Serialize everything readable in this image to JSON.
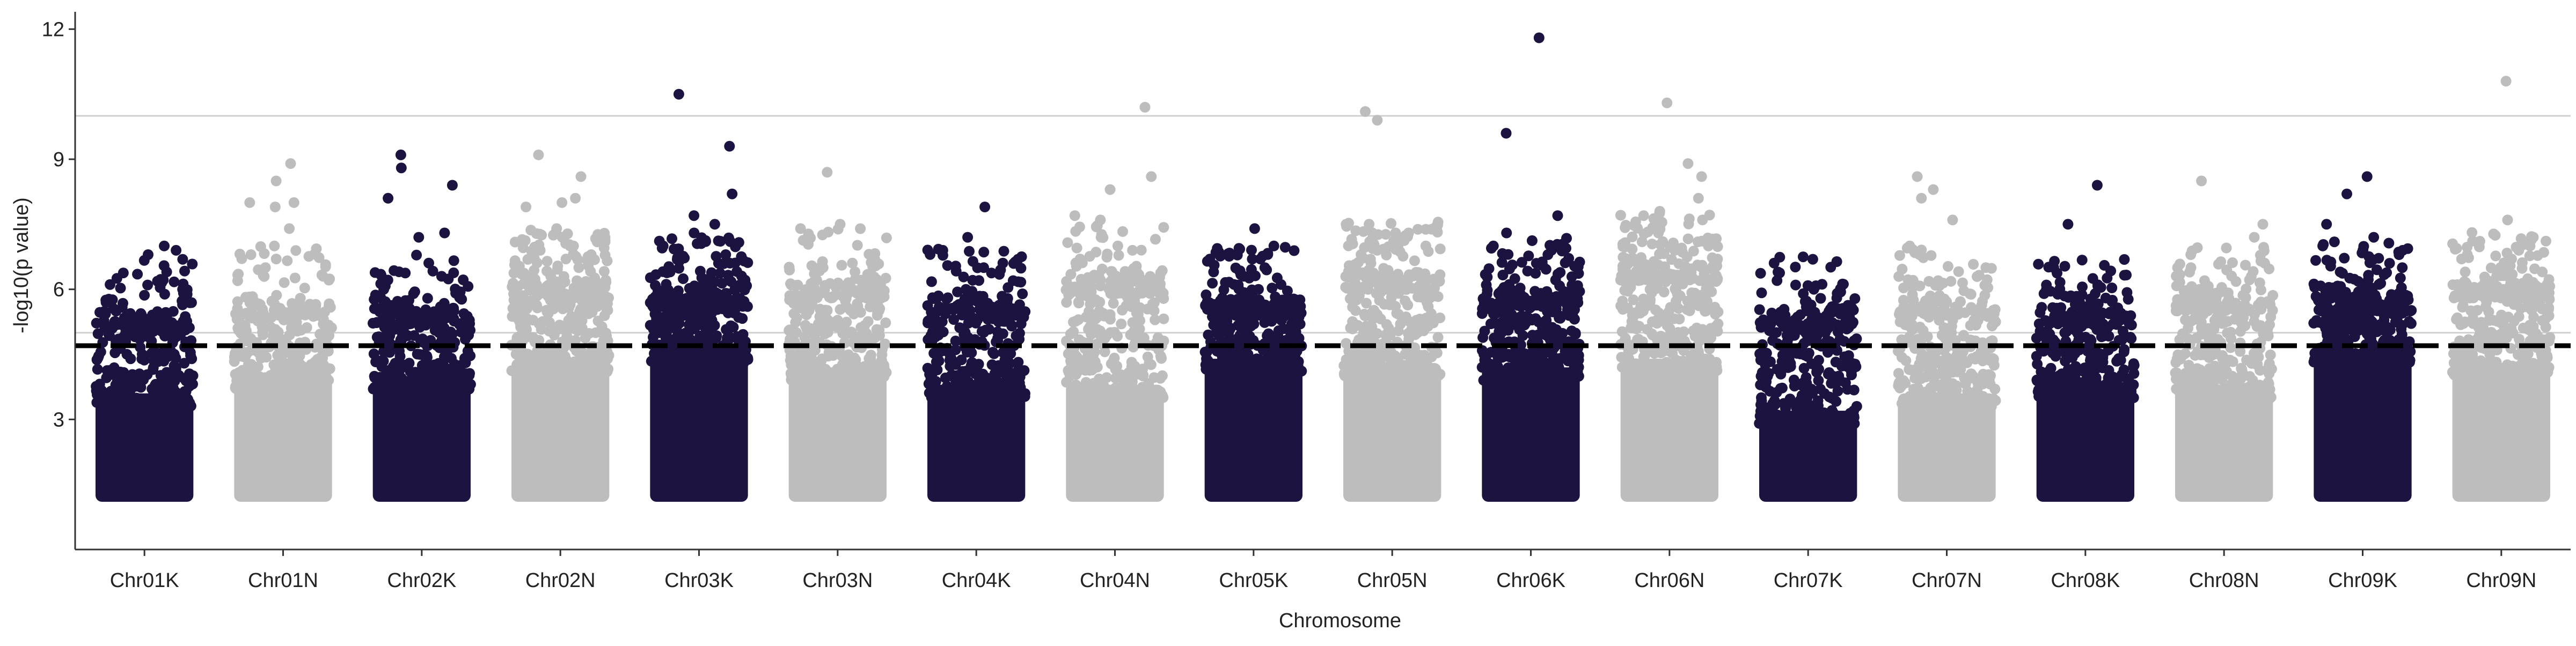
{
  "chart_data": {
    "type": "scatter",
    "subtype": "manhattan",
    "title": "",
    "xlabel": "Chromosome",
    "ylabel": "-log10(p value)",
    "ylim": [
      0,
      12.4
    ],
    "yticks": [
      3,
      6,
      9,
      12
    ],
    "grid": false,
    "legend": "none",
    "colors": {
      "dark": "#1c1340",
      "light": "#bdbdbd",
      "line": "#d0d0d0",
      "threshold": "#000000"
    },
    "significance_line": 4.7,
    "reference_lines": [
      5.0,
      10.0
    ],
    "chromosomes": [
      {
        "name": "Chr01K",
        "color": "dark",
        "floor": 1.1,
        "dense_top": 3.6,
        "spread_top": 5.5,
        "sparse": 70,
        "top_hits": [
          6.9,
          7.0,
          6.8,
          6.4,
          6.1,
          6.0
        ]
      },
      {
        "name": "Chr01N",
        "color": "light",
        "floor": 1.1,
        "dense_top": 4.0,
        "spread_top": 5.8,
        "sparse": 70,
        "top_hits": [
          8.9,
          8.5,
          8.0,
          8.0,
          7.9,
          7.4,
          7.0,
          6.8,
          6.7,
          6.5
        ]
      },
      {
        "name": "Chr02K",
        "color": "dark",
        "floor": 1.1,
        "dense_top": 4.0,
        "spread_top": 5.6,
        "sparse": 80,
        "top_hits": [
          9.1,
          8.8,
          8.4,
          8.1,
          7.3,
          7.2,
          6.3,
          6.0
        ]
      },
      {
        "name": "Chr02N",
        "color": "light",
        "floor": 1.1,
        "dense_top": 4.4,
        "spread_top": 6.2,
        "sparse": 110,
        "top_hits": [
          9.1,
          8.6,
          8.1,
          8.0,
          7.9,
          7.4,
          7.2,
          7.0,
          6.9,
          6.8
        ]
      },
      {
        "name": "Chr03K",
        "color": "dark",
        "floor": 1.1,
        "dense_top": 4.6,
        "spread_top": 6.0,
        "sparse": 120,
        "top_hits": [
          10.5,
          9.3,
          8.2,
          7.7,
          7.5,
          7.3,
          7.1,
          7.0,
          6.8,
          6.6
        ]
      },
      {
        "name": "Chr03N",
        "color": "light",
        "floor": 1.1,
        "dense_top": 4.2,
        "spread_top": 6.2,
        "sparse": 90,
        "top_hits": [
          8.7,
          7.5,
          7.4,
          6.8,
          6.7,
          6.6,
          6.5
        ]
      },
      {
        "name": "Chr04K",
        "color": "dark",
        "floor": 1.1,
        "dense_top": 3.8,
        "spread_top": 5.8,
        "sparse": 80,
        "top_hits": [
          7.9,
          7.2,
          6.9,
          6.5,
          6.2,
          6.0
        ]
      },
      {
        "name": "Chr04N",
        "color": "light",
        "floor": 1.1,
        "dense_top": 3.8,
        "spread_top": 6.3,
        "sparse": 100,
        "top_hits": [
          10.2,
          8.6,
          8.3,
          7.7,
          7.6,
          7.2,
          7.0,
          6.9,
          6.7
        ]
      },
      {
        "name": "Chr05K",
        "color": "dark",
        "floor": 1.1,
        "dense_top": 4.4,
        "spread_top": 5.8,
        "sparse": 100,
        "top_hits": [
          7.4,
          7.0,
          6.7,
          6.5,
          6.3,
          6.1,
          6.0
        ]
      },
      {
        "name": "Chr05N",
        "color": "light",
        "floor": 1.1,
        "dense_top": 4.3,
        "spread_top": 6.4,
        "sparse": 110,
        "top_hits": [
          10.1,
          9.9,
          7.5,
          7.3,
          7.1,
          7.0,
          6.9,
          6.8,
          6.6
        ]
      },
      {
        "name": "Chr06K",
        "color": "dark",
        "floor": 1.1,
        "dense_top": 4.2,
        "spread_top": 6.0,
        "sparse": 100,
        "top_hits": [
          11.8,
          9.6,
          7.7,
          7.3,
          7.0,
          6.9,
          6.8,
          6.6
        ]
      },
      {
        "name": "Chr06N",
        "color": "light",
        "floor": 1.1,
        "dense_top": 4.4,
        "spread_top": 6.6,
        "sparse": 120,
        "top_hits": [
          10.3,
          8.9,
          8.6,
          8.1,
          7.8,
          7.7,
          7.5,
          7.3,
          7.1,
          7.0
        ]
      },
      {
        "name": "Chr07K",
        "color": "dark",
        "floor": 1.1,
        "dense_top": 3.2,
        "spread_top": 5.6,
        "sparse": 60,
        "top_hits": [
          6.1,
          5.9,
          5.8,
          5.6
        ]
      },
      {
        "name": "Chr07N",
        "color": "light",
        "floor": 1.1,
        "dense_top": 3.6,
        "spread_top": 5.8,
        "sparse": 80,
        "top_hits": [
          8.6,
          8.3,
          8.1,
          7.6,
          7.0,
          6.8,
          6.5,
          6.2
        ]
      },
      {
        "name": "Chr08K",
        "color": "dark",
        "floor": 1.1,
        "dense_top": 3.8,
        "spread_top": 5.6,
        "sparse": 70,
        "top_hits": [
          8.4,
          7.5,
          6.5,
          6.1,
          5.9,
          5.8
        ]
      },
      {
        "name": "Chr08N",
        "color": "light",
        "floor": 1.1,
        "dense_top": 3.8,
        "spread_top": 5.9,
        "sparse": 80,
        "top_hits": [
          8.5,
          7.5,
          7.2,
          6.8,
          6.5,
          6.2
        ]
      },
      {
        "name": "Chr09K",
        "color": "dark",
        "floor": 1.1,
        "dense_top": 4.6,
        "spread_top": 5.9,
        "sparse": 120,
        "top_hits": [
          8.6,
          8.2,
          7.5,
          7.2,
          7.0,
          6.9,
          6.6,
          6.5
        ]
      },
      {
        "name": "Chr09N",
        "color": "light",
        "floor": 1.1,
        "dense_top": 4.3,
        "spread_top": 6.2,
        "sparse": 90,
        "top_hits": [
          10.8,
          7.6,
          7.2,
          7.0,
          6.9,
          6.7,
          6.5,
          6.4
        ]
      }
    ]
  }
}
